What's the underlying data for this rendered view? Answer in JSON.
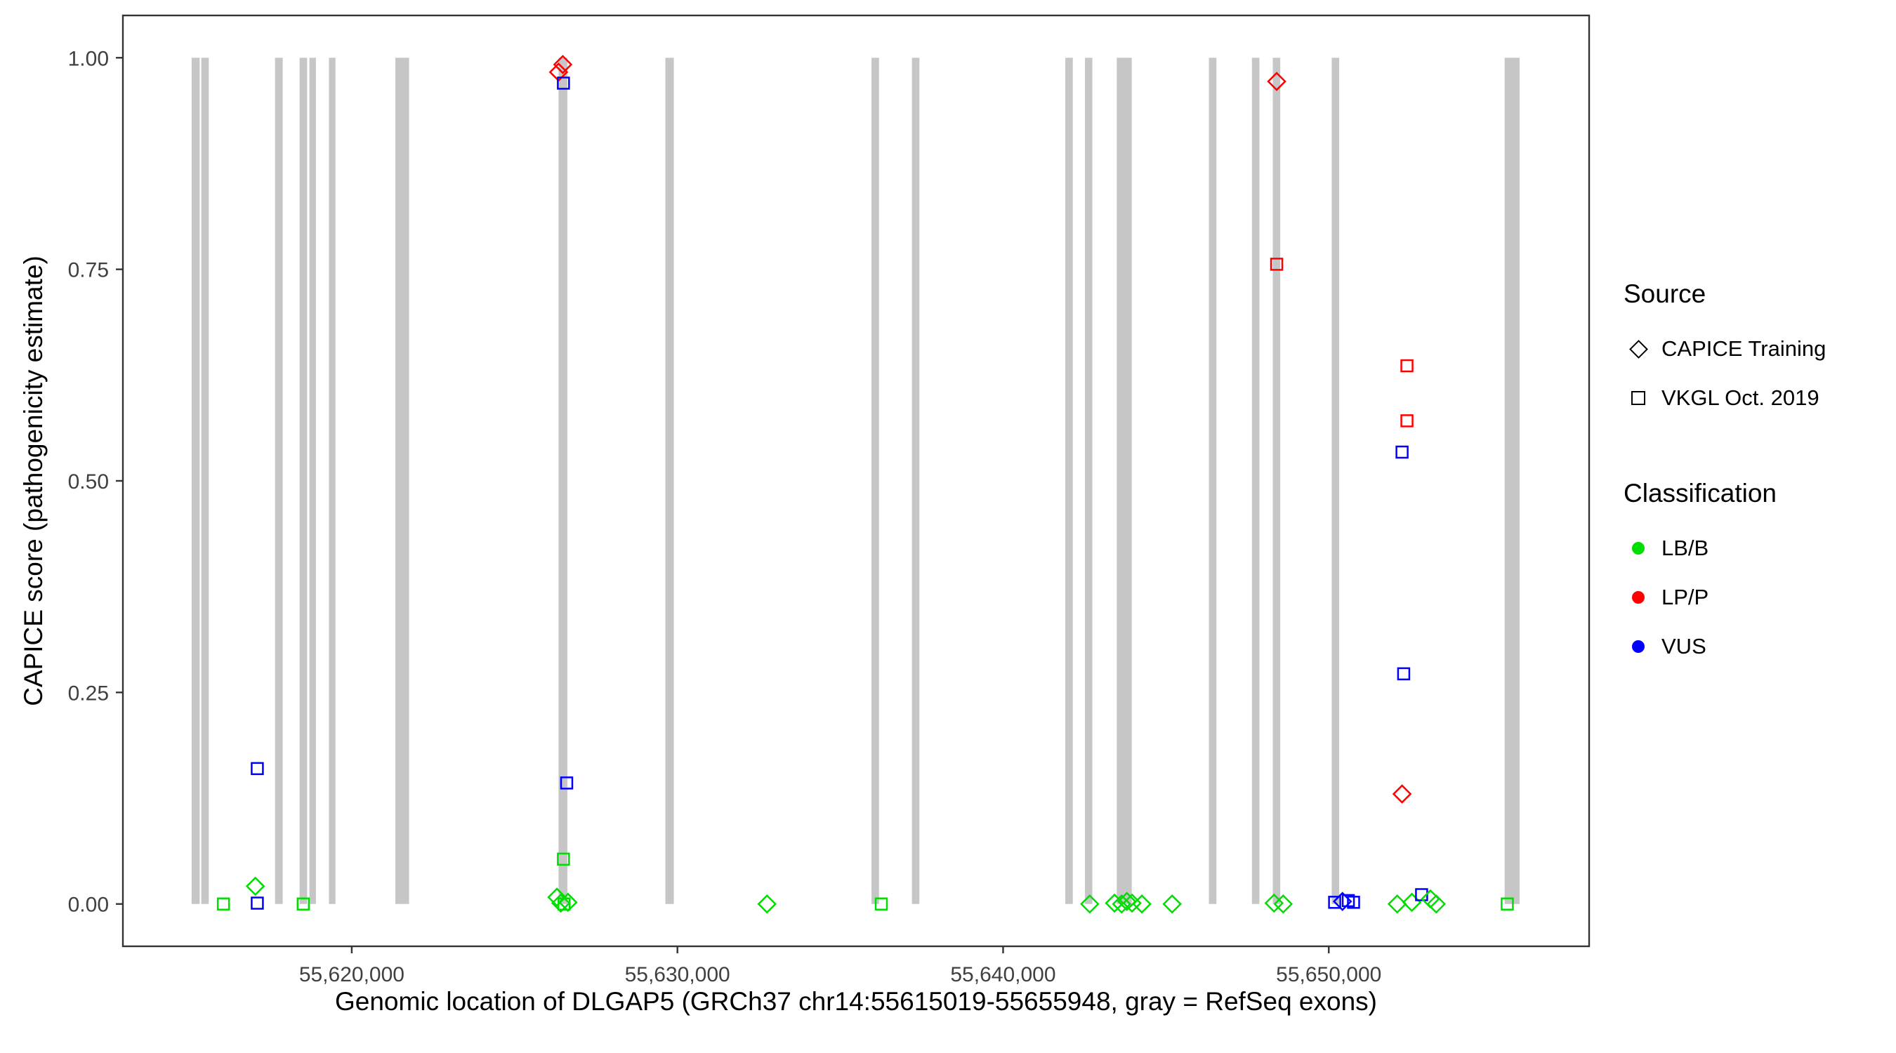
{
  "chart_data": {
    "type": "scatter",
    "title": "",
    "xlabel": "Genomic location of DLGAP5 (GRCh37 chr14:55615019-55655948, gray = RefSeq exons)",
    "ylabel": "CAPICE score (pathogenicity estimate)",
    "x_domain": [
      55612973,
      55657994
    ],
    "y_domain": [
      -0.05,
      1.05
    ],
    "x_ticks": [
      {
        "value": 55620000,
        "label": "55,620,000"
      },
      {
        "value": 55630000,
        "label": "55,630,000"
      },
      {
        "value": 55640000,
        "label": "55,640,000"
      },
      {
        "value": 55650000,
        "label": "55,650,000"
      }
    ],
    "y_ticks": [
      {
        "value": 0.0,
        "label": "0.00"
      },
      {
        "value": 0.25,
        "label": "0.25"
      },
      {
        "value": 0.5,
        "label": "0.50"
      },
      {
        "value": 0.75,
        "label": "0.75"
      },
      {
        "value": 1.0,
        "label": "1.00"
      }
    ],
    "exon_color": "#C6C6C6",
    "exon_band_y": [
      0.0,
      1.0
    ],
    "exons": [
      {
        "start": 55615083,
        "end": 55615330
      },
      {
        "start": 55615380,
        "end": 55615610
      },
      {
        "start": 55617645,
        "end": 55617880
      },
      {
        "start": 55618399,
        "end": 55618630
      },
      {
        "start": 55618700,
        "end": 55618900
      },
      {
        "start": 55619300,
        "end": 55619500
      },
      {
        "start": 55621340,
        "end": 55621760
      },
      {
        "start": 55626350,
        "end": 55626620
      },
      {
        "start": 55629630,
        "end": 55629890
      },
      {
        "start": 55635960,
        "end": 55636190
      },
      {
        "start": 55637200,
        "end": 55637430
      },
      {
        "start": 55641910,
        "end": 55642140
      },
      {
        "start": 55642515,
        "end": 55642740
      },
      {
        "start": 55643490,
        "end": 55643950
      },
      {
        "start": 55646320,
        "end": 55646550
      },
      {
        "start": 55647640,
        "end": 55647870
      },
      {
        "start": 55648280,
        "end": 55648510
      },
      {
        "start": 55650090,
        "end": 55650320
      },
      {
        "start": 55655400,
        "end": 55655860
      }
    ],
    "colors": {
      "LB/B": "#00DD00",
      "LP/P": "#FF0000",
      "VUS": "#0000FF"
    },
    "shapes": {
      "CAPICE Training": "diamond",
      "VKGL Oct. 2019": "square"
    },
    "points": [
      {
        "x": 55626480,
        "y": 0.992,
        "source": "CAPICE Training",
        "classification": "LP/P"
      },
      {
        "x": 55626350,
        "y": 0.983,
        "source": "CAPICE Training",
        "classification": "LP/P"
      },
      {
        "x": 55626500,
        "y": 0.97,
        "source": "VKGL Oct. 2019",
        "classification": "VUS"
      },
      {
        "x": 55648400,
        "y": 0.972,
        "source": "CAPICE Training",
        "classification": "LP/P"
      },
      {
        "x": 55648400,
        "y": 0.756,
        "source": "VKGL Oct. 2019",
        "classification": "LP/P"
      },
      {
        "x": 55652400,
        "y": 0.636,
        "source": "VKGL Oct. 2019",
        "classification": "LP/P"
      },
      {
        "x": 55652400,
        "y": 0.571,
        "source": "VKGL Oct. 2019",
        "classification": "LP/P"
      },
      {
        "x": 55652250,
        "y": 0.534,
        "source": "VKGL Oct. 2019",
        "classification": "VUS"
      },
      {
        "x": 55652300,
        "y": 0.272,
        "source": "VKGL Oct. 2019",
        "classification": "VUS"
      },
      {
        "x": 55652250,
        "y": 0.13,
        "source": "CAPICE Training",
        "classification": "LP/P"
      },
      {
        "x": 55617100,
        "y": 0.16,
        "source": "VKGL Oct. 2019",
        "classification": "VUS"
      },
      {
        "x": 55626600,
        "y": 0.143,
        "source": "VKGL Oct. 2019",
        "classification": "VUS"
      },
      {
        "x": 55626500,
        "y": 0.053,
        "source": "VKGL Oct. 2019",
        "classification": "LB/B"
      },
      {
        "x": 55617040,
        "y": 0.021,
        "source": "CAPICE Training",
        "classification": "LB/B"
      },
      {
        "x": 55617100,
        "y": 0.001,
        "source": "VKGL Oct. 2019",
        "classification": "VUS"
      },
      {
        "x": 55616060,
        "y": 0.0,
        "source": "VKGL Oct. 2019",
        "classification": "LB/B"
      },
      {
        "x": 55618510,
        "y": 0.0,
        "source": "VKGL Oct. 2019",
        "classification": "LB/B"
      },
      {
        "x": 55626300,
        "y": 0.008,
        "source": "CAPICE Training",
        "classification": "LB/B"
      },
      {
        "x": 55626420,
        "y": 0.001,
        "source": "CAPICE Training",
        "classification": "LB/B"
      },
      {
        "x": 55626520,
        "y": 0.0,
        "source": "VKGL Oct. 2019",
        "classification": "LB/B"
      },
      {
        "x": 55626640,
        "y": 0.002,
        "source": "CAPICE Training",
        "classification": "LB/B"
      },
      {
        "x": 55632750,
        "y": 0.0,
        "source": "CAPICE Training",
        "classification": "LB/B"
      },
      {
        "x": 55636260,
        "y": 0.0,
        "source": "VKGL Oct. 2019",
        "classification": "LB/B"
      },
      {
        "x": 55642660,
        "y": 0.0,
        "source": "CAPICE Training",
        "classification": "LB/B"
      },
      {
        "x": 55643420,
        "y": 0.001,
        "source": "CAPICE Training",
        "classification": "LB/B"
      },
      {
        "x": 55643640,
        "y": 0.0,
        "source": "CAPICE Training",
        "classification": "LB/B"
      },
      {
        "x": 55643800,
        "y": 0.003,
        "source": "CAPICE Training",
        "classification": "LB/B"
      },
      {
        "x": 55643960,
        "y": 0.001,
        "source": "CAPICE Training",
        "classification": "LB/B"
      },
      {
        "x": 55644260,
        "y": 0.0,
        "source": "CAPICE Training",
        "classification": "LB/B"
      },
      {
        "x": 55645190,
        "y": 0.0,
        "source": "CAPICE Training",
        "classification": "LB/B"
      },
      {
        "x": 55648320,
        "y": 0.001,
        "source": "CAPICE Training",
        "classification": "LB/B"
      },
      {
        "x": 55648600,
        "y": 0.0,
        "source": "CAPICE Training",
        "classification": "LB/B"
      },
      {
        "x": 55650180,
        "y": 0.002,
        "source": "VKGL Oct. 2019",
        "classification": "VUS"
      },
      {
        "x": 55650420,
        "y": 0.003,
        "source": "CAPICE Training",
        "classification": "VUS"
      },
      {
        "x": 55650600,
        "y": 0.004,
        "source": "VKGL Oct. 2019",
        "classification": "VUS"
      },
      {
        "x": 55650760,
        "y": 0.002,
        "source": "VKGL Oct. 2019",
        "classification": "VUS"
      },
      {
        "x": 55652100,
        "y": 0.0,
        "source": "CAPICE Training",
        "classification": "LB/B"
      },
      {
        "x": 55652550,
        "y": 0.002,
        "source": "CAPICE Training",
        "classification": "LB/B"
      },
      {
        "x": 55652850,
        "y": 0.011,
        "source": "VKGL Oct. 2019",
        "classification": "VUS"
      },
      {
        "x": 55653120,
        "y": 0.006,
        "source": "CAPICE Training",
        "classification": "LB/B"
      },
      {
        "x": 55653300,
        "y": 0.0,
        "source": "CAPICE Training",
        "classification": "LB/B"
      },
      {
        "x": 55655480,
        "y": 0.0,
        "source": "VKGL Oct. 2019",
        "classification": "LB/B"
      }
    ]
  },
  "legend": {
    "source": {
      "title": "Source",
      "items": [
        {
          "label": "CAPICE Training",
          "shape": "diamond"
        },
        {
          "label": "VKGL Oct. 2019",
          "shape": "square"
        }
      ]
    },
    "classification": {
      "title": "Classification",
      "items": [
        {
          "label": "LB/B",
          "color": "#00DD00"
        },
        {
          "label": "LP/P",
          "color": "#FF0000"
        },
        {
          "label": "VUS",
          "color": "#0000FF"
        }
      ]
    }
  }
}
